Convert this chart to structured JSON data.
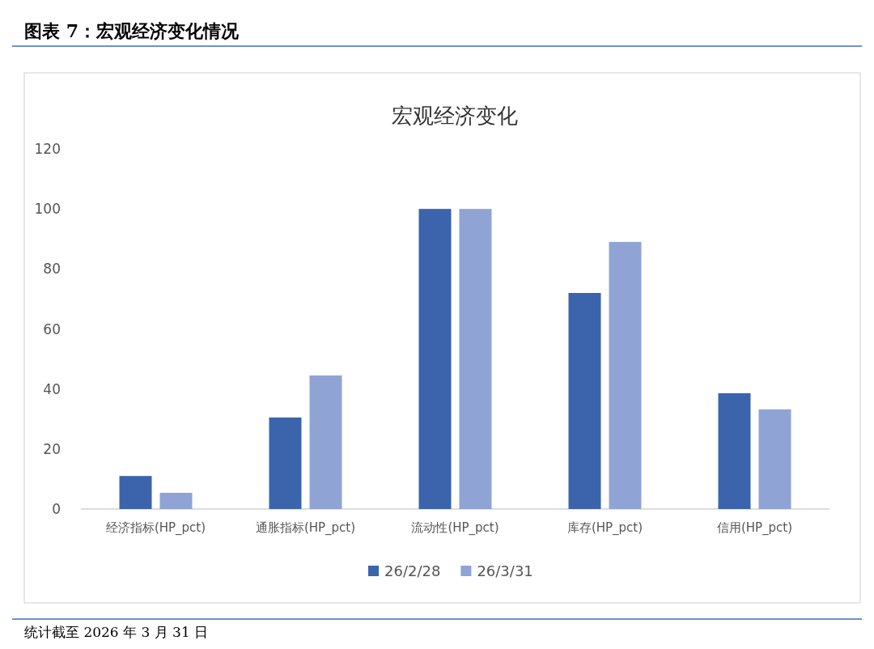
{
  "chart_data": {
    "type": "bar",
    "title": "图表 7：宏观经济变化情况",
    "subtitle": "宏观经济变化",
    "categories": [
      "经济指标(HP_pct)",
      "通胀指标(HP_pct)",
      "流动性(HP_pct)",
      "库存(HP_pct)",
      "信用(HP_pct)"
    ],
    "series": [
      {
        "name": "26/2/28",
        "color": "#3b64ad",
        "values": [
          11,
          30.5,
          100,
          72,
          38.6
        ]
      },
      {
        "name": "26/3/31",
        "color": "#8fa4d4",
        "values": [
          5.4,
          44.5,
          100,
          89,
          33.2
        ]
      }
    ],
    "ylim": [
      0,
      120
    ],
    "yticks": [
      0,
      20,
      40,
      60,
      80,
      100,
      120
    ],
    "grid": false,
    "legend": "bottom",
    "annotations": [
      "统计截至 2026 年 3 月 31 日"
    ]
  }
}
